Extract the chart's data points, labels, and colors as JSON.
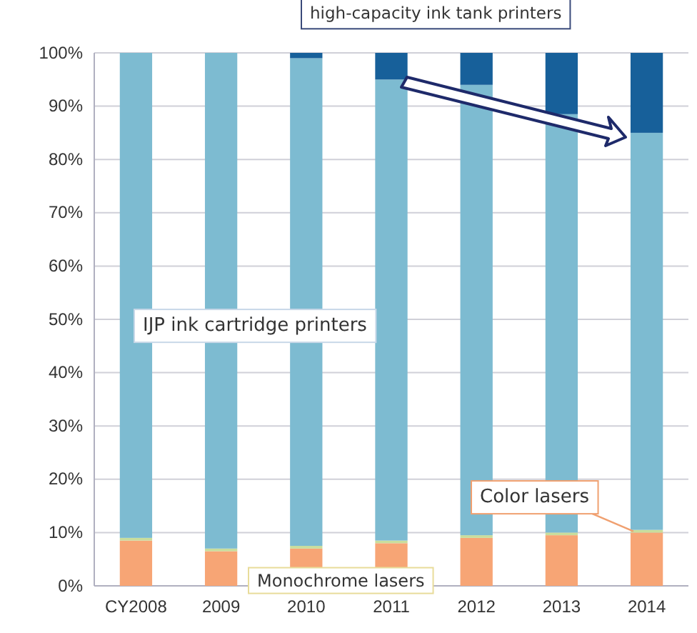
{
  "chart_data": {
    "type": "bar",
    "stacked": true,
    "categories": [
      "CY2008",
      "2009",
      "2010",
      "2011",
      "2012",
      "2013",
      "2014"
    ],
    "series": [
      {
        "name": "Monochrome lasers",
        "color": "#f7a575",
        "values": [
          8.5,
          6.5,
          7,
          8,
          9,
          9.5,
          10
        ]
      },
      {
        "name": "Color lasers",
        "color": "#c9dd9c",
        "values": [
          0.5,
          0.5,
          0.5,
          0.5,
          0.5,
          0.5,
          0.5
        ]
      },
      {
        "name": "IJP ink cartridge printers",
        "color": "#7dbbd1",
        "values": [
          91,
          93,
          91.5,
          86.5,
          84.5,
          78.5,
          74.5
        ]
      },
      {
        "name": "high-capacity ink tank printers",
        "color": "#17609a",
        "values": [
          0,
          0,
          1,
          5,
          6,
          11.5,
          15
        ]
      }
    ],
    "ylim": [
      0,
      100
    ],
    "yticks": [
      {
        "value": 0,
        "label": "0%"
      },
      {
        "value": 10,
        "label": "10%"
      },
      {
        "value": 20,
        "label": "20%"
      },
      {
        "value": 30,
        "label": "30%"
      },
      {
        "value": 40,
        "label": "40%"
      },
      {
        "value": 50,
        "label": "50%"
      },
      {
        "value": 60,
        "label": "60%"
      },
      {
        "value": 70,
        "label": "70%"
      },
      {
        "value": 80,
        "label": "80%"
      },
      {
        "value": 90,
        "label": "90%"
      },
      {
        "value": 100,
        "label": "100%"
      }
    ],
    "grid": "y"
  }
}
